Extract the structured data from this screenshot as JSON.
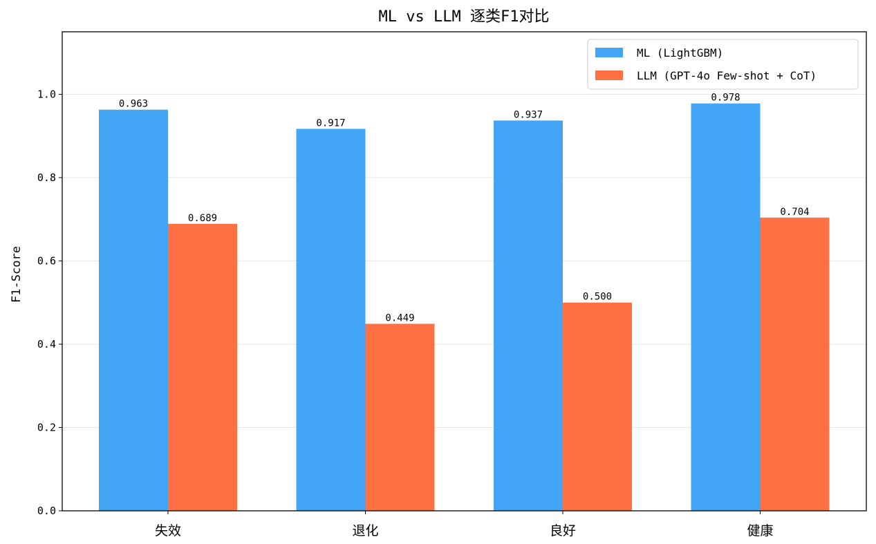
{
  "chart_data": {
    "type": "bar",
    "title": "ML vs LLM 逐类F1对比",
    "xlabel": "",
    "ylabel": "F1-Score",
    "categories": [
      "失效",
      "退化",
      "良好",
      "健康"
    ],
    "series": [
      {
        "name": "ML (LightGBM)",
        "color": "#42A5F5",
        "values": [
          0.963,
          0.917,
          0.937,
          0.978
        ],
        "labels": [
          "0.963",
          "0.917",
          "0.937",
          "0.978"
        ]
      },
      {
        "name": "LLM (GPT-4o Few-shot + CoT)",
        "color": "#FF7043",
        "values": [
          0.689,
          0.449,
          0.5,
          0.704
        ],
        "labels": [
          "0.689",
          "0.449",
          "0.500",
          "0.704"
        ]
      }
    ],
    "ylim": [
      0,
      1.15
    ],
    "yticks": [
      0.0,
      0.2,
      0.4,
      0.6,
      0.8,
      1.0
    ],
    "ytick_labels": [
      "0.0",
      "0.2",
      "0.4",
      "0.6",
      "0.8",
      "1.0"
    ],
    "grid": "horizontal",
    "legend_position": "top-right"
  }
}
